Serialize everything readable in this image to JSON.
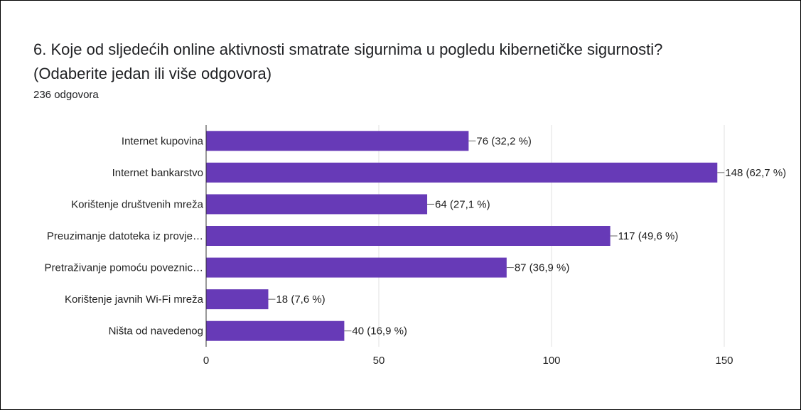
{
  "chart_data": {
    "type": "bar",
    "orientation": "horizontal",
    "title": "6. Koje od sljedećih online aktivnosti smatrate sigurnima u pogledu kibernetičke sigurnosti? (Odaberite jedan ili više odgovora)",
    "subtitle": "236 odgovora",
    "categories": [
      "Internet kupovina",
      "Internet bankarstvo",
      "Korištenje društvenih mreža",
      "Preuzimanje datoteka iz provje…",
      "Pretraživanje pomoću poveznic…",
      "Korištenje javnih Wi-Fi mreža",
      "Ništa od navedenog"
    ],
    "values": [
      76,
      148,
      64,
      117,
      87,
      18,
      40
    ],
    "value_labels": [
      "76 (32,2 %)",
      "148 (62,7 %)",
      "64 (27,1 %)",
      "117 (49,6 %)",
      "87 (36,9 %)",
      "18 (7,6 %)",
      "40 (16,9 %)"
    ],
    "color": "#673ab7",
    "xlim": [
      0,
      150
    ],
    "xticks": [
      0,
      50,
      100,
      150
    ],
    "grid": true
  }
}
